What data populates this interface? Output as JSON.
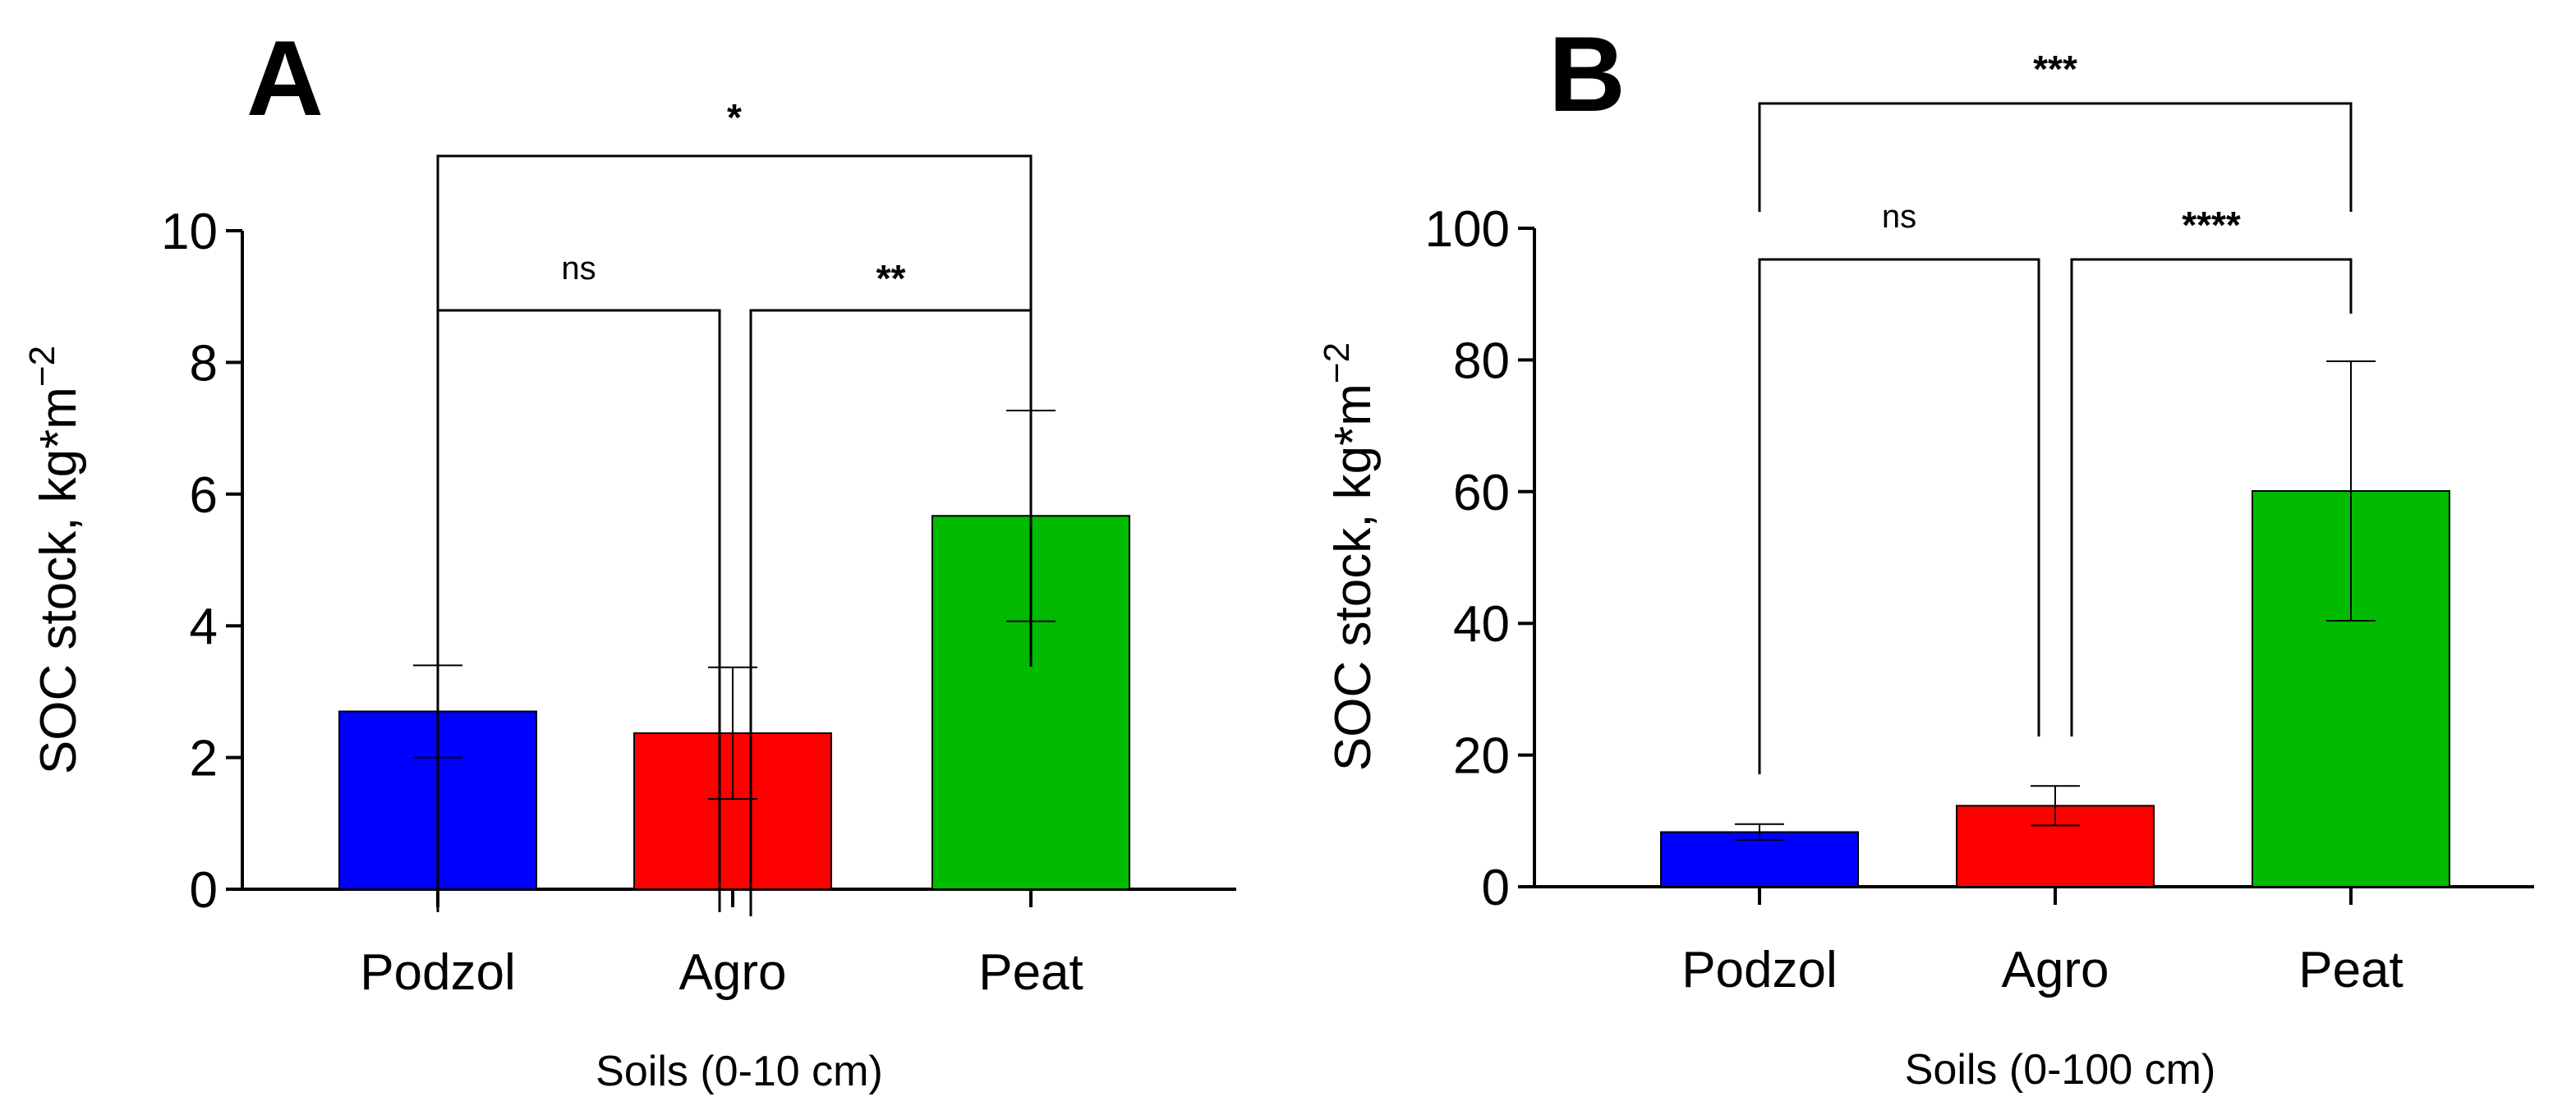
{
  "chart_data": [
    {
      "panel": "A",
      "type": "bar",
      "categories": [
        "Podzol",
        "Agro",
        "Peat"
      ],
      "values": [
        2.7,
        2.37,
        5.67
      ],
      "errors": [
        0.7,
        1.0,
        1.6
      ],
      "colors": [
        "#0000ff",
        "#ff0000",
        "#00bb00"
      ],
      "ylim": [
        0,
        10
      ],
      "yticks": [
        "0",
        "2",
        "4",
        "6",
        "8",
        "10"
      ],
      "ylabel_main": "SOC stock, kg*m",
      "ylabel_sup": "−2",
      "xlabel": "Soils (0-10 cm)",
      "grid": false,
      "comparisons": [
        {
          "from": 0,
          "to": 1,
          "label": "ns"
        },
        {
          "from": 1,
          "to": 2,
          "label": "**"
        },
        {
          "from": 0,
          "to": 2,
          "label": "*"
        }
      ]
    },
    {
      "panel": "B",
      "type": "bar",
      "categories": [
        "Podzol",
        "Agro",
        "Peat"
      ],
      "values": [
        8.3,
        12.3,
        60.1
      ],
      "errors": [
        1.2,
        3.0,
        19.7
      ],
      "colors": [
        "#0000ff",
        "#ff0000",
        "#00bb00"
      ],
      "ylim": [
        0,
        100
      ],
      "yticks": [
        "0",
        "20",
        "40",
        "60",
        "80",
        "100"
      ],
      "ylabel_main": "SOC stock, kg*m",
      "ylabel_sup": "−2",
      "xlabel": "Soils (0-100 cm)",
      "grid": false,
      "comparisons": [
        {
          "from": 0,
          "to": 1,
          "label": "ns"
        },
        {
          "from": 1,
          "to": 2,
          "label": "****"
        },
        {
          "from": 0,
          "to": 2,
          "label": "***"
        }
      ]
    }
  ]
}
